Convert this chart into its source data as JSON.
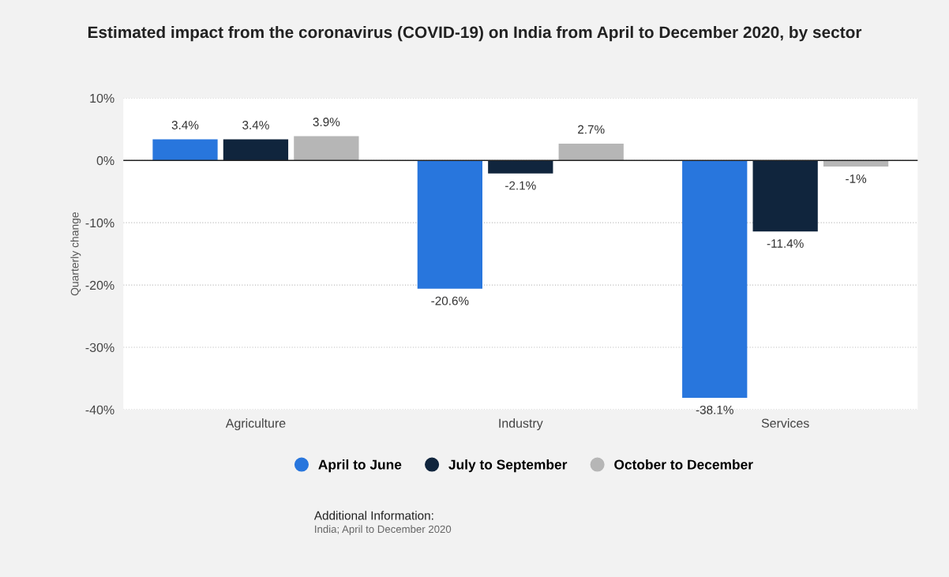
{
  "chart_data": {
    "type": "bar",
    "title": "Estimated impact from the coronavirus (COVID-19) on India from April to December 2020, by sector",
    "ylabel": "Quarterly change",
    "categories": [
      "Agriculture",
      "Industry",
      "Services"
    ],
    "series": [
      {
        "name": "April to June",
        "color": "#2876dd",
        "values": [
          3.4,
          -20.6,
          -38.1
        ],
        "value_labels": [
          "3.4%",
          "-20.6%",
          "-38.1%"
        ]
      },
      {
        "name": "July to September",
        "color": "#10253d",
        "values": [
          3.4,
          -2.1,
          -11.4
        ],
        "value_labels": [
          "3.4%",
          "-2.1%",
          "-11.4%"
        ]
      },
      {
        "name": "October to December",
        "color": "#b6b6b6",
        "values": [
          3.9,
          2.7,
          -1
        ],
        "value_labels": [
          "3.9%",
          "2.7%",
          "-1%"
        ]
      }
    ],
    "ylim": [
      -40,
      10
    ],
    "yticks": [
      {
        "value": 10,
        "label": "10%"
      },
      {
        "value": 0,
        "label": "0%"
      },
      {
        "value": -10,
        "label": "-10%"
      },
      {
        "value": -20,
        "label": "-20%"
      },
      {
        "value": -30,
        "label": "-30%"
      },
      {
        "value": -40,
        "label": "-40%"
      }
    ],
    "grid": "y",
    "legend": "bottom",
    "annotations": [
      "Additional Information:",
      "India; April to December 2020"
    ]
  }
}
